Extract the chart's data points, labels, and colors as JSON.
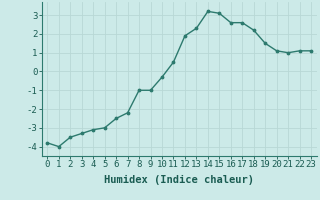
{
  "x": [
    0,
    1,
    2,
    3,
    4,
    5,
    6,
    7,
    8,
    9,
    10,
    11,
    12,
    13,
    14,
    15,
    16,
    17,
    18,
    19,
    20,
    21,
    22,
    23
  ],
  "y": [
    -3.8,
    -4.0,
    -3.5,
    -3.3,
    -3.1,
    -3.0,
    -2.5,
    -2.2,
    -1.0,
    -1.0,
    -0.3,
    0.5,
    1.9,
    2.3,
    3.2,
    3.1,
    2.6,
    2.6,
    2.2,
    1.5,
    1.1,
    1.0,
    1.1,
    1.1
  ],
  "line_color": "#2d7a6e",
  "marker": ".",
  "marker_size": 3.5,
  "bg_color": "#cceae8",
  "grid_color": "#b8d8d5",
  "xlabel": "Humidex (Indice chaleur)",
  "ylim": [
    -4.5,
    3.7
  ],
  "xlim": [
    -0.5,
    23.5
  ],
  "yticks": [
    -4,
    -3,
    -2,
    -1,
    0,
    1,
    2,
    3
  ],
  "xticks": [
    0,
    1,
    2,
    3,
    4,
    5,
    6,
    7,
    8,
    9,
    10,
    11,
    12,
    13,
    14,
    15,
    16,
    17,
    18,
    19,
    20,
    21,
    22,
    23
  ],
  "tick_fontsize": 6.5,
  "xlabel_fontsize": 7.5,
  "line_width": 1.0,
  "spine_color": "#2d7a6e",
  "text_color": "#1a5c52"
}
